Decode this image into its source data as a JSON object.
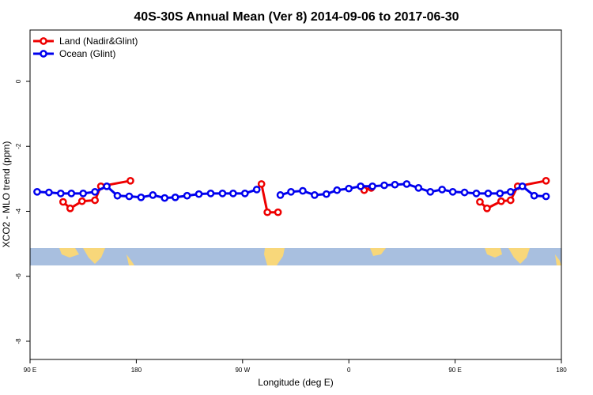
{
  "chart_data": {
    "type": "line",
    "title": "40S-30S Annual Mean (Ver 8)   2014-09-06 to 2017-06-30",
    "xlabel": "Longitude (deg E)",
    "ylabel": "XCO2 - MLO trend (ppm)",
    "xlim": [
      90,
      540
    ],
    "xticks": [
      {
        "value": 90,
        "label": "90 E"
      },
      180,
      {
        "value": 270,
        "label": "90 W"
      },
      {
        "value": 360,
        "label": "0"
      },
      {
        "value": 450,
        "label": "90 E"
      },
      {
        "value": 540,
        "label": "180"
      }
    ],
    "ylim": [
      -8.56,
      1.58
    ],
    "yticks": [
      0,
      -2,
      -4,
      -6,
      -8
    ],
    "legend": "top-left",
    "series": [
      {
        "name": "Land (Nadir&Glint)",
        "color": "#ee0000",
        "x": [
          118,
          124,
          134,
          145,
          150,
          175,
          null,
          286,
          291,
          300,
          null,
          373,
          379,
          null,
          471,
          477,
          489,
          497,
          503,
          527
        ],
        "values": [
          -3.71,
          -3.91,
          -3.69,
          -3.66,
          -3.23,
          -3.06,
          null,
          -3.16,
          -4.03,
          -4.03,
          null,
          -3.35,
          -3.28,
          null,
          -3.71,
          -3.91,
          -3.69,
          -3.66,
          -3.23,
          -3.06
        ]
      },
      {
        "name": "Ocean (Glint)",
        "color": "#0000ee",
        "x": [
          96,
          106,
          116,
          125,
          135,
          145,
          155,
          164,
          174,
          184,
          194,
          204,
          213,
          223,
          233,
          243,
          253,
          262,
          272,
          282,
          null,
          302,
          311,
          321,
          331,
          341,
          350,
          360,
          370,
          380,
          390,
          399,
          409,
          419,
          429,
          439,
          448,
          458,
          468,
          478,
          488,
          497,
          507,
          517,
          527
        ],
        "values": [
          -3.4,
          -3.42,
          -3.45,
          -3.45,
          -3.45,
          -3.4,
          -3.23,
          -3.52,
          -3.54,
          -3.57,
          -3.5,
          -3.59,
          -3.57,
          -3.52,
          -3.47,
          -3.45,
          -3.45,
          -3.45,
          -3.45,
          -3.33,
          null,
          -3.5,
          -3.4,
          -3.37,
          -3.5,
          -3.47,
          -3.35,
          -3.3,
          -3.23,
          -3.23,
          -3.2,
          -3.18,
          -3.16,
          -3.28,
          -3.4,
          -3.33,
          -3.4,
          -3.42,
          -3.45,
          -3.45,
          -3.45,
          -3.4,
          -3.23,
          -3.52,
          -3.54
        ]
      }
    ]
  }
}
